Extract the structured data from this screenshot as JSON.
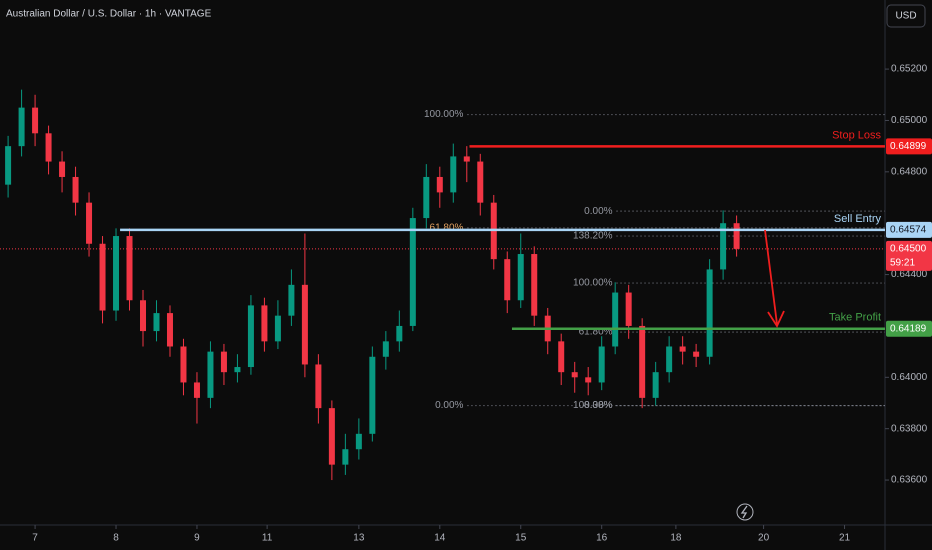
{
  "chart_data": {
    "type": "candlestick",
    "title": "Australian Dollar / U.S. Dollar · 1h · VANTAGE",
    "currency_button": "USD",
    "up_color": "#089981",
    "down_color": "#f23645",
    "x": [
      -4,
      -2,
      0,
      2,
      4,
      6,
      8,
      10,
      12,
      14,
      16,
      18,
      20,
      22,
      24,
      26,
      28,
      30,
      32,
      34,
      36,
      38,
      40,
      42,
      44,
      46,
      48,
      50,
      52,
      54,
      56,
      58,
      60,
      62,
      64,
      66,
      68,
      70,
      72,
      74,
      76,
      78,
      80,
      82,
      84,
      86,
      88,
      90,
      92,
      94,
      96,
      98,
      100,
      102,
      104
    ],
    "open": [
      0.6475,
      0.649,
      0.6505,
      0.6495,
      0.6484,
      0.6478,
      0.6468,
      0.6452,
      0.6426,
      0.6455,
      0.643,
      0.6418,
      0.6425,
      0.6412,
      0.6398,
      0.6392,
      0.641,
      0.6402,
      0.6404,
      0.6428,
      0.6414,
      0.6424,
      0.6436,
      0.6405,
      0.6388,
      0.6366,
      0.6372,
      0.6378,
      0.6408,
      0.6414,
      0.642,
      0.6462,
      0.6478,
      0.6472,
      0.6486,
      0.6484,
      0.6468,
      0.6446,
      0.643,
      0.6448,
      0.6424,
      0.6414,
      0.6402,
      0.64,
      0.6398,
      0.6412,
      0.6433,
      0.642,
      0.6392,
      0.6402,
      0.6412,
      0.641,
      0.6408,
      0.6442,
      0.646
    ],
    "high": [
      0.6494,
      0.6512,
      0.651,
      0.6498,
      0.6488,
      0.6482,
      0.6472,
      0.6455,
      0.6458,
      0.6458,
      0.6434,
      0.643,
      0.6428,
      0.6415,
      0.6402,
      0.6414,
      0.6413,
      0.6409,
      0.6432,
      0.6431,
      0.643,
      0.6442,
      0.6456,
      0.6409,
      0.6391,
      0.6378,
      0.6384,
      0.6412,
      0.6418,
      0.6426,
      0.6466,
      0.6483,
      0.6482,
      0.6491,
      0.649,
      0.6487,
      0.6471,
      0.6449,
      0.6456,
      0.6451,
      0.6427,
      0.6417,
      0.6406,
      0.6404,
      0.6416,
      0.6437,
      0.6436,
      0.6423,
      0.6406,
      0.6416,
      0.6416,
      0.6413,
      0.6446,
      0.6465,
      0.6463
    ],
    "low": [
      0.647,
      0.6486,
      0.649,
      0.6479,
      0.6472,
      0.6463,
      0.6447,
      0.6421,
      0.6422,
      0.6426,
      0.6412,
      0.6414,
      0.6408,
      0.6393,
      0.6382,
      0.6388,
      0.6397,
      0.6398,
      0.6401,
      0.641,
      0.6411,
      0.642,
      0.64,
      0.6382,
      0.636,
      0.6362,
      0.6368,
      0.6375,
      0.6403,
      0.641,
      0.6418,
      0.6458,
      0.6466,
      0.6468,
      0.6476,
      0.6463,
      0.6442,
      0.6425,
      0.6427,
      0.642,
      0.6409,
      0.6397,
      0.6394,
      0.6393,
      0.6395,
      0.6409,
      0.6415,
      0.6388,
      0.6389,
      0.6398,
      0.6405,
      0.6404,
      0.6405,
      0.6438,
      0.6447
    ],
    "close": [
      0.649,
      0.6505,
      0.6495,
      0.6484,
      0.6478,
      0.6468,
      0.6452,
      0.6426,
      0.6455,
      0.643,
      0.6418,
      0.6425,
      0.6412,
      0.6398,
      0.6392,
      0.641,
      0.6402,
      0.6404,
      0.6428,
      0.6414,
      0.6424,
      0.6436,
      0.6405,
      0.6388,
      0.6366,
      0.6372,
      0.6378,
      0.6408,
      0.6414,
      0.642,
      0.6462,
      0.6478,
      0.6472,
      0.6486,
      0.6484,
      0.6468,
      0.6446,
      0.643,
      0.6448,
      0.6424,
      0.6414,
      0.6402,
      0.64,
      0.6398,
      0.6412,
      0.6433,
      0.642,
      0.6392,
      0.6402,
      0.6412,
      0.641,
      0.6408,
      0.6442,
      0.646,
      0.645
    ],
    "xlim": [
      -5.2,
      126
    ],
    "xticks": [
      {
        "value": 0,
        "label": "7"
      },
      {
        "value": 12,
        "label": "8"
      },
      {
        "value": 24,
        "label": "9"
      },
      {
        "value": 34.4,
        "label": "11"
      },
      {
        "value": 48,
        "label": "13"
      },
      {
        "value": 60,
        "label": "14"
      },
      {
        "value": 72,
        "label": "15"
      },
      {
        "value": 84,
        "label": "16"
      },
      {
        "value": 95,
        "label": "18"
      },
      {
        "value": 108,
        "label": "20"
      },
      {
        "value": 120,
        "label": "21"
      }
    ],
    "ylim": [
      0.63425,
      0.65469
    ],
    "yticks": [
      {
        "value": 0.652,
        "label": "0.65200"
      },
      {
        "value": 0.65,
        "label": "0.65000"
      },
      {
        "value": 0.648,
        "label": "0.64800"
      },
      {
        "value": 0.644,
        "label": "0.64400"
      },
      {
        "value": 0.64,
        "label": "0.64000"
      },
      {
        "value": 0.638,
        "label": "0.63800"
      },
      {
        "value": 0.636,
        "label": "0.63600"
      }
    ],
    "levels": [
      {
        "name": "Stop Loss",
        "price": 0.64899,
        "price_label": "0.64899",
        "color": "#f01e1e",
        "from": 64.4
      },
      {
        "name": "Sell Entry",
        "price": 0.64574,
        "price_label": "0.64574",
        "color": "#a9d4f5",
        "from": 12.6
      },
      {
        "name": "Take Profit",
        "price": 0.64189,
        "price_label": "0.64189",
        "color": "#43a047",
        "from": 70.7
      }
    ],
    "current_price": {
      "value": 0.645,
      "label": "0.64500",
      "countdown": "59:21",
      "color": "#f23645"
    },
    "fibs": [
      {
        "from": 64.1,
        "levels": [
          {
            "label": "100.00%",
            "price": 0.65023
          },
          {
            "label": "61.80%",
            "price": 0.64582
          },
          {
            "label": "0.00%",
            "price": 0.6389
          }
        ]
      },
      {
        "from": 86.2,
        "levels": [
          {
            "label": "0.00%",
            "price": 0.64647
          },
          {
            "label": "138.20%",
            "price": 0.6455
          },
          {
            "label": "100.00%",
            "price": 0.64367
          },
          {
            "label": "61.80%",
            "price": 0.64176
          },
          {
            "label": "8.38%",
            "price": 0.6389
          },
          {
            "label": "100.00%",
            "price": 0.6389
          }
        ]
      }
    ]
  }
}
